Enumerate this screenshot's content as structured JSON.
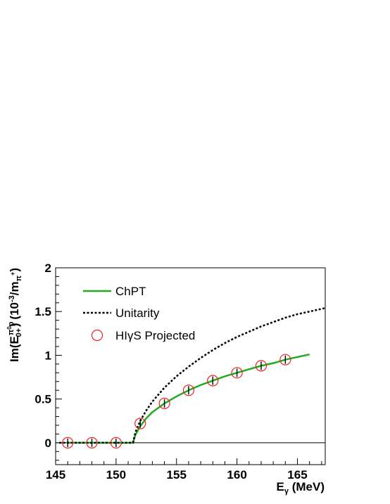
{
  "chart_data": {
    "type": "line",
    "xlabel": "E",
    "xlabel_sub": "γ",
    "xlabel_unit": " (MeV)",
    "ylabel_main": "Im(E",
    "ylabel_sup": "π",
    "ylabel_sup2": "0",
    "ylabel_sup3": "p",
    "ylabel_sub": "0+",
    "ylabel_tail": ") (10",
    "ylabel_exp": "-3",
    "ylabel_unit": "/m",
    "ylabel_unit_sub": "π",
    "ylabel_unit_sup": "+",
    "ylabel_close": ")",
    "xlim": [
      145,
      167.3
    ],
    "ylim": [
      -0.25,
      2
    ],
    "x_ticks": [
      145,
      150,
      155,
      160,
      165
    ],
    "x_tick_labels": [
      "145",
      "150",
      "155",
      "160",
      "165"
    ],
    "y_ticks": [
      0,
      0.5,
      1,
      1.5,
      2
    ],
    "y_tick_labels": [
      "0",
      "0.5",
      "1",
      "1.5",
      "2"
    ],
    "threshold": 151.4,
    "series": [
      {
        "name": "ChPT",
        "style": "solid",
        "color": "#22aa22",
        "x": [
          146,
          150,
          151.4,
          151.6,
          152,
          152.5,
          153,
          154,
          155,
          156,
          157,
          158,
          159,
          160,
          161,
          162,
          163,
          164,
          165,
          166
        ],
        "y": [
          0,
          0,
          0,
          0.09,
          0.19,
          0.28,
          0.35,
          0.45,
          0.53,
          0.6,
          0.66,
          0.71,
          0.76,
          0.8,
          0.84,
          0.88,
          0.91,
          0.95,
          0.98,
          1.01
        ]
      },
      {
        "name": "Unitarity",
        "style": "dotted",
        "color": "#000000",
        "x": [
          145.3,
          150,
          151.4,
          151.6,
          152,
          152.5,
          153,
          154,
          155,
          156,
          157,
          158,
          159,
          160,
          161,
          162,
          163,
          164,
          165,
          166,
          167.3
        ],
        "y": [
          0,
          0,
          0,
          0.12,
          0.25,
          0.37,
          0.47,
          0.63,
          0.76,
          0.87,
          0.97,
          1.06,
          1.14,
          1.21,
          1.27,
          1.33,
          1.38,
          1.43,
          1.47,
          1.5,
          1.54
        ]
      },
      {
        "name": "HIγS Projected",
        "style": "markers",
        "color": "#ee2222",
        "x": [
          146,
          148,
          150,
          152,
          154,
          156,
          158,
          160,
          162,
          164
        ],
        "y": [
          0,
          0,
          0,
          0.22,
          0.45,
          0.6,
          0.71,
          0.8,
          0.88,
          0.95
        ]
      }
    ],
    "legend": [
      "ChPT",
      "Unitarity",
      "HIγS Projected"
    ],
    "legend_position": "top-left",
    "grid": false
  }
}
